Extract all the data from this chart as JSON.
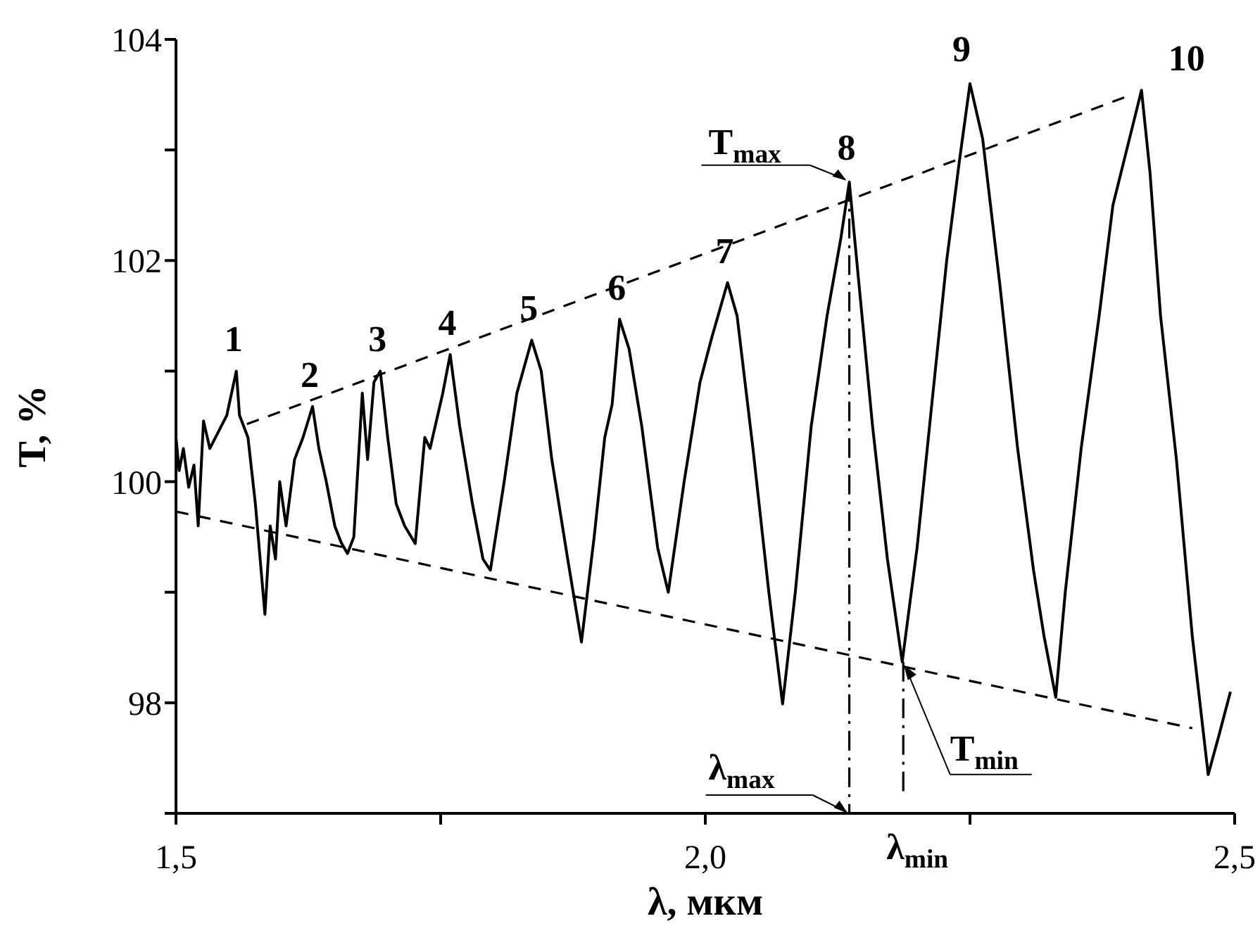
{
  "chart_data": {
    "type": "line",
    "xlabel": "λ, мкм",
    "ylabel": "T, %",
    "xlim": [
      1.5,
      2.5
    ],
    "ylim": [
      97,
      104
    ],
    "xticks": [
      {
        "value": 1.5,
        "label": "1,5"
      },
      {
        "value": 1.75,
        "label": null
      },
      {
        "value": 2.0,
        "label": "2,0"
      },
      {
        "value": 2.25,
        "label": null
      },
      {
        "value": 2.5,
        "label": "2,5"
      }
    ],
    "yticks": [
      {
        "value": 97,
        "label": null
      },
      98,
      {
        "value": 99,
        "label": null
      },
      100,
      {
        "value": 101,
        "label": null
      },
      102,
      {
        "value": 103,
        "label": null
      },
      104
    ],
    "marker": "none",
    "line_style": "solid",
    "series": [
      {
        "color": "#000000",
        "x": [
          1.5,
          1.503,
          1.507,
          1.512,
          1.517,
          1.521,
          1.526,
          1.532,
          1.54,
          1.548,
          1.557,
          1.56,
          1.568,
          1.575,
          1.584,
          1.589,
          1.594,
          1.598,
          1.604,
          1.612,
          1.62,
          1.629,
          1.635,
          1.642,
          1.65,
          1.656,
          1.662,
          1.668,
          1.676,
          1.681,
          1.687,
          1.693,
          1.7,
          1.708,
          1.716,
          1.726,
          1.735,
          1.74,
          1.752,
          1.759,
          1.768,
          1.78,
          1.79,
          1.797,
          1.81,
          1.822,
          1.836,
          1.845,
          1.855,
          1.87,
          1.883,
          1.895,
          1.905,
          1.912,
          1.919,
          1.928,
          1.94,
          1.955,
          1.965,
          1.98,
          1.995,
          2.006,
          2.021,
          2.03,
          2.045,
          2.06,
          2.073,
          2.085,
          2.1,
          2.115,
          2.128,
          2.136,
          2.145,
          2.158,
          2.172,
          2.186,
          2.2,
          2.215,
          2.228,
          2.24,
          2.25,
          2.262,
          2.278,
          2.295,
          2.31,
          2.32,
          2.331,
          2.34,
          2.355,
          2.372,
          2.385,
          2.398,
          2.412,
          2.42,
          2.43,
          2.445,
          2.46,
          2.475,
          2.485,
          2.496
        ],
        "values": [
          100.4,
          100.1,
          100.3,
          99.95,
          100.15,
          99.6,
          100.55,
          100.3,
          100.45,
          100.6,
          101.0,
          100.6,
          100.4,
          99.8,
          98.8,
          99.6,
          99.3,
          100.0,
          99.6,
          100.2,
          100.4,
          100.68,
          100.3,
          100.0,
          99.6,
          99.45,
          99.35,
          99.5,
          100.8,
          100.2,
          100.9,
          101.0,
          100.4,
          99.8,
          99.6,
          99.44,
          100.4,
          100.3,
          100.8,
          101.15,
          100.5,
          99.8,
          99.3,
          99.2,
          100.0,
          100.8,
          101.28,
          101.0,
          100.2,
          99.3,
          98.55,
          99.5,
          100.4,
          100.7,
          101.47,
          101.2,
          100.5,
          99.4,
          99.0,
          100.0,
          100.9,
          101.3,
          101.8,
          101.5,
          100.3,
          99.0,
          97.99,
          99.0,
          100.5,
          101.5,
          102.2,
          102.71,
          101.8,
          100.5,
          99.3,
          98.37,
          99.4,
          100.8,
          102.0,
          102.9,
          103.6,
          103.1,
          101.8,
          100.3,
          99.2,
          98.6,
          98.05,
          99.0,
          100.3,
          101.5,
          102.5,
          103.0,
          103.54,
          102.8,
          101.5,
          100.2,
          98.6,
          97.35,
          97.7,
          98.1
        ]
      },
      {
        "color": "#000000",
        "line_style": "dashed",
        "x": [
          1.567,
          2.4
        ],
        "values": [
          100.52,
          103.49
        ]
      },
      {
        "color": "#000000",
        "line_style": "dashed",
        "x": [
          1.5,
          2.46
        ],
        "values": [
          99.73,
          97.77
        ]
      },
      {
        "color": "#000000",
        "line_style": "dotted",
        "x": [
          2.136,
          2.136
        ],
        "values": [
          102.71,
          97
        ]
      },
      {
        "color": "#000000",
        "line_style": "dotted",
        "x": [
          2.187,
          2.187
        ],
        "values": [
          98.37,
          97.2
        ]
      }
    ],
    "annotations": [
      {
        "text": "1",
        "x": 1.557,
        "y": 101.0
      },
      {
        "text": "2",
        "x": 1.629,
        "y": 100.68
      },
      {
        "text": "3",
        "x": 1.693,
        "y": 101.0
      },
      {
        "text": "4",
        "x": 1.759,
        "y": 101.15
      },
      {
        "text": "5",
        "x": 1.836,
        "y": 101.28
      },
      {
        "text": "6",
        "x": 1.919,
        "y": 101.47
      },
      {
        "text": "7",
        "x": 2.021,
        "y": 101.8
      },
      {
        "text": "8",
        "x": 2.136,
        "y": 102.71
      },
      {
        "text": "9",
        "x": 2.25,
        "y": 103.6
      },
      {
        "text": "10",
        "x": 2.412,
        "y": 103.54
      },
      {
        "text": "T$_{max}$",
        "x": 2.136,
        "y": 102.71
      },
      {
        "text": "T$_{min}$",
        "x": 2.186,
        "y": 98.37
      },
      {
        "text": "λ$_{max}$",
        "x": 2.136,
        "y": 97
      },
      {
        "text": "λ$_{min}$",
        "x": 2.187,
        "y": 97.2
      }
    ]
  }
}
